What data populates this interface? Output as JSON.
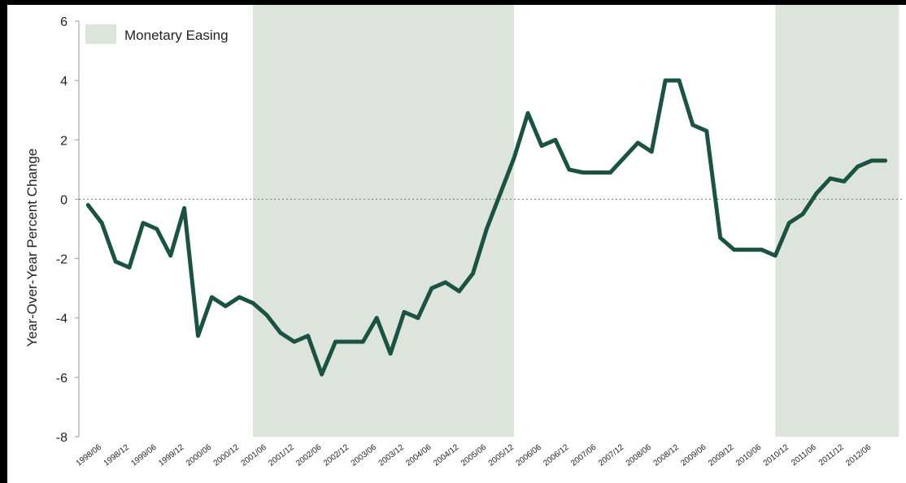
{
  "chart_data": {
    "type": "line",
    "title": "",
    "xlabel": "",
    "ylabel": "Year-Over-Year Percent Change",
    "ylim": [
      -8,
      6
    ],
    "yticks": [
      -8,
      -6,
      -4,
      -2,
      0,
      2,
      4,
      6
    ],
    "grid": false,
    "zero_line": "dotted",
    "legend": {
      "label": "Monetary Easing",
      "placement": "top-left"
    },
    "colors": {
      "line": "#1a5244",
      "shade": "#dde4db",
      "axis": "#999999",
      "text": "#222222"
    },
    "x_tick_labels": [
      "1998/06",
      "1998/12",
      "1999/06",
      "1999/12",
      "2000/06",
      "2000/12",
      "2001/06",
      "2001/12",
      "2002/06",
      "2002/12",
      "2003/06",
      "2003/12",
      "2004/06",
      "2004/12",
      "2005/06",
      "2005/12",
      "2006/06",
      "2006/12",
      "2007/06",
      "2007/12",
      "2008/06",
      "2008/12",
      "2009/06",
      "2009/12",
      "2010/06",
      "2010/12",
      "2011/06",
      "2011/12",
      "2012/06"
    ],
    "shaded_periods": [
      {
        "start": "2001/03",
        "end": "2005/12"
      },
      {
        "start": "2010/09",
        "end": "2012/12"
      }
    ],
    "x": [
      "1998/03",
      "1998/06",
      "1998/09",
      "1998/12",
      "1999/03",
      "1999/06",
      "1999/09",
      "1999/12",
      "2000/03",
      "2000/06",
      "2000/09",
      "2000/12",
      "2001/03",
      "2001/06",
      "2001/09",
      "2001/12",
      "2002/03",
      "2002/06",
      "2002/09",
      "2002/12",
      "2003/03",
      "2003/06",
      "2003/09",
      "2003/12",
      "2004/03",
      "2004/06",
      "2004/09",
      "2004/12",
      "2005/03",
      "2005/06",
      "2005/09",
      "2005/12",
      "2006/03",
      "2006/06",
      "2006/09",
      "2006/12",
      "2007/03",
      "2007/06",
      "2007/09",
      "2007/12",
      "2008/03",
      "2008/06",
      "2008/09",
      "2008/12",
      "2009/03",
      "2009/06",
      "2009/09",
      "2009/12",
      "2010/03",
      "2010/06",
      "2010/09",
      "2010/12",
      "2011/03",
      "2011/06",
      "2011/09",
      "2011/12",
      "2012/03",
      "2012/06",
      "2012/09"
    ],
    "series": [
      {
        "values": [
          -0.2,
          -0.8,
          -2.1,
          -2.3,
          -0.8,
          -1.0,
          -1.9,
          -0.3,
          -4.6,
          -3.3,
          -3.6,
          -3.3,
          -3.5,
          -3.9,
          -4.5,
          -4.8,
          -4.6,
          -5.9,
          -4.8,
          -4.8,
          -4.8,
          -4.0,
          -5.2,
          -3.8,
          -4.0,
          -3.0,
          -2.8,
          -3.1,
          -2.5,
          -1.0,
          0.2,
          1.4,
          2.9,
          1.8,
          2.0,
          1.0,
          0.9,
          0.9,
          0.9,
          1.4,
          1.9,
          1.6,
          4.0,
          4.0,
          2.5,
          2.3,
          -1.3,
          -1.7,
          -1.7,
          -1.7,
          -1.9,
          -0.8,
          -0.5,
          0.2,
          0.7,
          0.6,
          1.1,
          1.3,
          1.3
        ]
      }
    ]
  }
}
